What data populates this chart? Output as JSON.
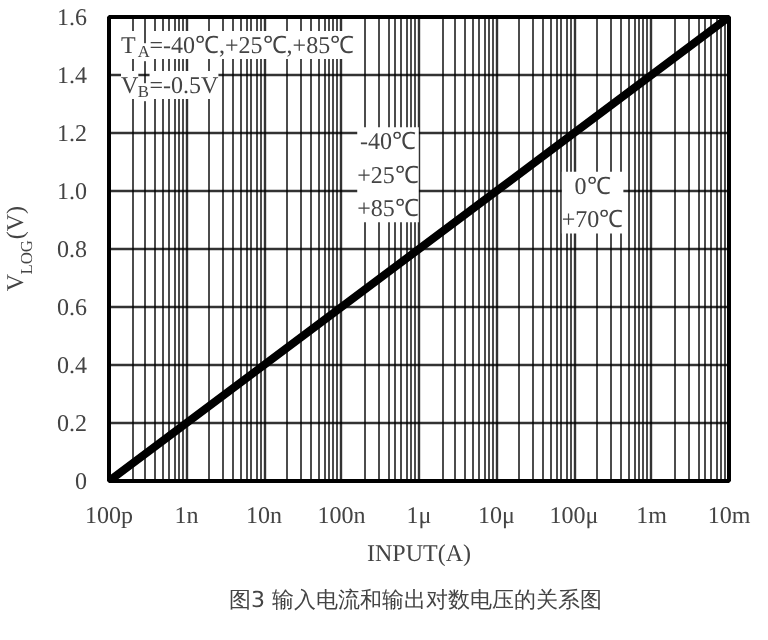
{
  "chart_data": {
    "type": "line",
    "xlabel": "INPUT(A)",
    "ylabel": "V$_{LOG}$(V)",
    "categories": [
      "100p",
      "1n",
      "10n",
      "100n",
      "1μ",
      "10μ",
      "100μ",
      "1m",
      "10m"
    ],
    "series": [
      {
        "color": "#000000",
        "values": [
          0,
          0.2,
          0.4,
          0.6,
          0.8,
          1.0,
          1.2,
          1.4,
          1.6
        ]
      }
    ],
    "ylim": [
      0,
      1.6
    ],
    "yticks": [
      0,
      {
        "value": 0.2,
        "label": "0.2"
      },
      {
        "value": 0.4,
        "label": "0.4"
      },
      {
        "value": 0.6,
        "label": "0.6"
      },
      {
        "value": 0.8,
        "label": "0.8"
      },
      {
        "value": 1.0,
        "label": "1.0"
      },
      {
        "value": 1.2,
        "label": "1.2"
      },
      {
        "value": 1.4,
        "label": "1.4"
      },
      {
        "value": 1.6,
        "label": "1.6"
      }
    ],
    "grid": true,
    "annotations": [
      "T$_{A}$=-40℃,+25℃,+85℃",
      "V$_{B}$=-0.5V",
      "-40℃\n+25℃\n+85℃",
      "0℃\n+70℃",
      "图3  输入电流和输出对数电压的关系图"
    ]
  }
}
